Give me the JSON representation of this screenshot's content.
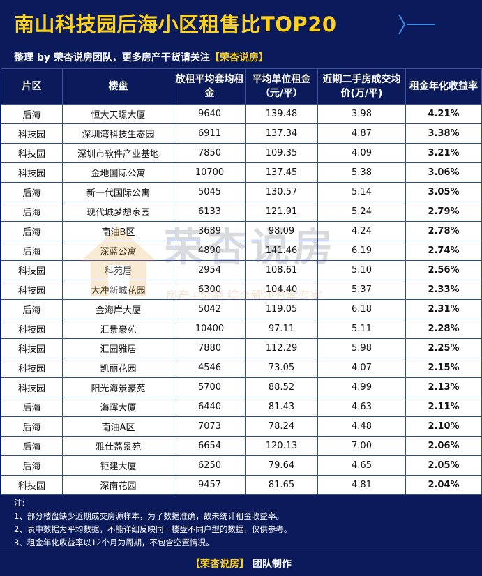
{
  "header": {
    "title": "南山科技园后海小区租售比TOP20",
    "subtitle_prefix": "整理 by 荣杏说房团队，更多房产干货请关注",
    "subtitle_highlight": "【荣杏说房】"
  },
  "table": {
    "columns": [
      "片区",
      "楼盘",
      "放租平均套均租金",
      "平均单位租金（元/平）",
      "近期二手房成交均价(万/平)",
      "租金年化收益率"
    ],
    "rows": [
      [
        "后海",
        "恒大天璟大厦",
        "9640",
        "139.48",
        "3.98",
        "4.21%"
      ],
      [
        "科技园",
        "深圳湾科技生态园",
        "6911",
        "137.34",
        "4.87",
        "3.38%"
      ],
      [
        "科技园",
        "深圳市软件产业基地",
        "7850",
        "109.35",
        "4.09",
        "3.21%"
      ],
      [
        "科技园",
        "金地国际公寓",
        "10700",
        "137.45",
        "5.38",
        "3.06%"
      ],
      [
        "后海",
        "新一代国际公寓",
        "5045",
        "130.57",
        "5.14",
        "3.05%"
      ],
      [
        "后海",
        "现代城梦想家园",
        "6133",
        "121.91",
        "5.24",
        "2.79%"
      ],
      [
        "后海",
        "南油B区",
        "3689",
        "98.09",
        "4.24",
        "2.78%"
      ],
      [
        "后海",
        "深蓝公寓",
        "4890",
        "141.46",
        "6.19",
        "2.74%"
      ],
      [
        "科技园",
        "科苑居",
        "2954",
        "108.61",
        "5.10",
        "2.56%"
      ],
      [
        "科技园",
        "大冲新城花园",
        "6300",
        "104.40",
        "5.37",
        "2.33%"
      ],
      [
        "后海",
        "金海岸大厦",
        "5042",
        "119.05",
        "6.18",
        "2.31%"
      ],
      [
        "科技园",
        "汇景豪苑",
        "10400",
        "97.11",
        "5.11",
        "2.28%"
      ],
      [
        "科技园",
        "汇园雅居",
        "7880",
        "112.29",
        "5.98",
        "2.25%"
      ],
      [
        "科技园",
        "凯丽花园",
        "4546",
        "73.05",
        "4.07",
        "2.15%"
      ],
      [
        "科技园",
        "阳光海景豪苑",
        "5700",
        "88.52",
        "4.99",
        "2.13%"
      ],
      [
        "后海",
        "海晖大厦",
        "6440",
        "81.43",
        "4.63",
        "2.11%"
      ],
      [
        "后海",
        "南油A区",
        "7073",
        "78.24",
        "4.48",
        "2.10%"
      ],
      [
        "后海",
        "雅仕荔景苑",
        "6654",
        "120.13",
        "7.00",
        "2.06%"
      ],
      [
        "后海",
        "钜建大厦",
        "6250",
        "79.64",
        "4.65",
        "2.05%"
      ],
      [
        "科技园",
        "深南花园",
        "9457",
        "81.65",
        "4.81",
        "2.04%"
      ]
    ]
  },
  "watermark": {
    "main": "荣杏说房",
    "sub": "房产+金融 综合解决方案专家"
  },
  "notes": {
    "heading": "注:",
    "items": [
      "1、部分楼盘缺少近期成交房源样本，为了数据准确，故未统计租金收益率。",
      "2、表中数据为平均数据，不能详细反映同一楼盘不同户型的数据，仅供参考。",
      "3、租金年化收益率以12个月为周期，不包含空置情况。"
    ]
  },
  "footer": {
    "highlight": "【荣杏说房】",
    "suffix": " 团队制作"
  },
  "colors": {
    "background": "#0a1a5a",
    "title": "#ffd21a",
    "accent": "#3a8ae8"
  }
}
